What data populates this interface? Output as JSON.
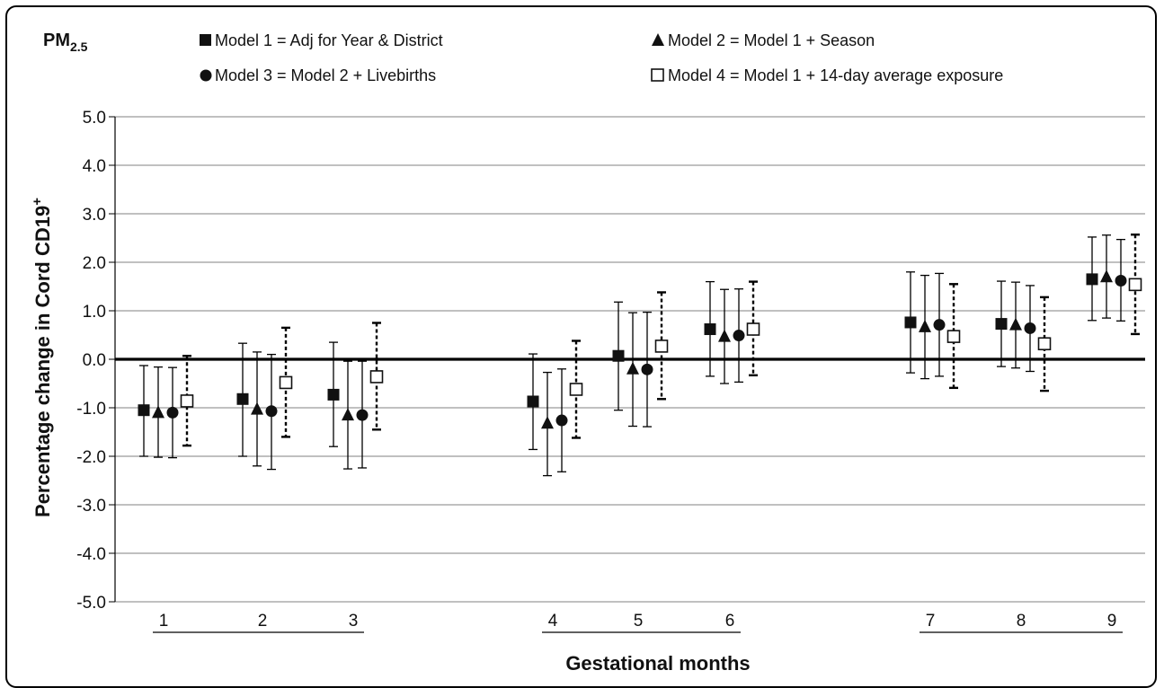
{
  "chart_data": {
    "type": "scatter",
    "pollutant_label": {
      "main": "PM",
      "sub": "2.5"
    },
    "ylabel": {
      "main": "Percentage change in Cord CD19",
      "sup": "+"
    },
    "xlabel": "Gestational months",
    "ylim": [
      -5.0,
      5.0
    ],
    "yticks": [
      "5.0",
      "4.0",
      "3.0",
      "2.0",
      "1.0",
      "0.0",
      "-1.0",
      "-2.0",
      "-3.0",
      "-4.0",
      "-5.0"
    ],
    "grid": true,
    "legend_position": "top",
    "categories": [
      "1",
      "2",
      "3",
      "4",
      "5",
      "6",
      "7",
      "8",
      "9"
    ],
    "groups": [
      [
        "1",
        "2",
        "3"
      ],
      [
        "4",
        "5",
        "6"
      ],
      [
        "7",
        "8",
        "9"
      ]
    ],
    "series": [
      {
        "name": "Model 1 = Adj for Year & District",
        "marker": "square-filled",
        "line": "solid",
        "values": [
          -1.05,
          -0.82,
          -0.73,
          -0.87,
          0.07,
          0.62,
          0.76,
          0.73,
          1.65
        ],
        "lower": [
          -2.0,
          -2.0,
          -1.8,
          -1.86,
          -1.05,
          -0.35,
          -0.28,
          -0.15,
          0.8
        ],
        "upper": [
          -0.13,
          0.33,
          0.35,
          0.11,
          1.18,
          1.6,
          1.8,
          1.61,
          2.52
        ]
      },
      {
        "name": "Model 2 = Model 1 + Season",
        "marker": "triangle-filled",
        "line": "solid",
        "values": [
          -1.1,
          -1.03,
          -1.15,
          -1.32,
          -0.2,
          0.47,
          0.67,
          0.71,
          1.7
        ],
        "lower": [
          -2.02,
          -2.2,
          -2.26,
          -2.4,
          -1.38,
          -0.5,
          -0.4,
          -0.18,
          0.85
        ],
        "upper": [
          -0.16,
          0.15,
          -0.04,
          -0.27,
          0.96,
          1.44,
          1.73,
          1.59,
          2.56
        ]
      },
      {
        "name": "Model 3 = Model 2 + Livebirths",
        "marker": "circle-filled",
        "line": "solid",
        "values": [
          -1.1,
          -1.07,
          -1.15,
          -1.26,
          -0.21,
          0.49,
          0.71,
          0.64,
          1.62
        ],
        "lower": [
          -2.03,
          -2.27,
          -2.24,
          -2.32,
          -1.39,
          -0.47,
          -0.35,
          -0.25,
          0.79
        ],
        "upper": [
          -0.17,
          0.1,
          -0.04,
          -0.2,
          0.97,
          1.45,
          1.77,
          1.52,
          2.47
        ]
      },
      {
        "name": "Model 4 = Model 1 + 14-day average exposure",
        "marker": "square-open",
        "line": "dotted",
        "values": [
          -0.86,
          -0.48,
          -0.36,
          -0.62,
          0.27,
          0.62,
          0.47,
          0.32,
          1.54
        ],
        "lower": [
          -1.78,
          -1.6,
          -1.45,
          -1.62,
          -0.82,
          -0.33,
          -0.59,
          -0.65,
          0.52
        ],
        "upper": [
          0.07,
          0.65,
          0.75,
          0.38,
          1.38,
          1.6,
          1.55,
          1.28,
          2.57
        ]
      }
    ]
  }
}
